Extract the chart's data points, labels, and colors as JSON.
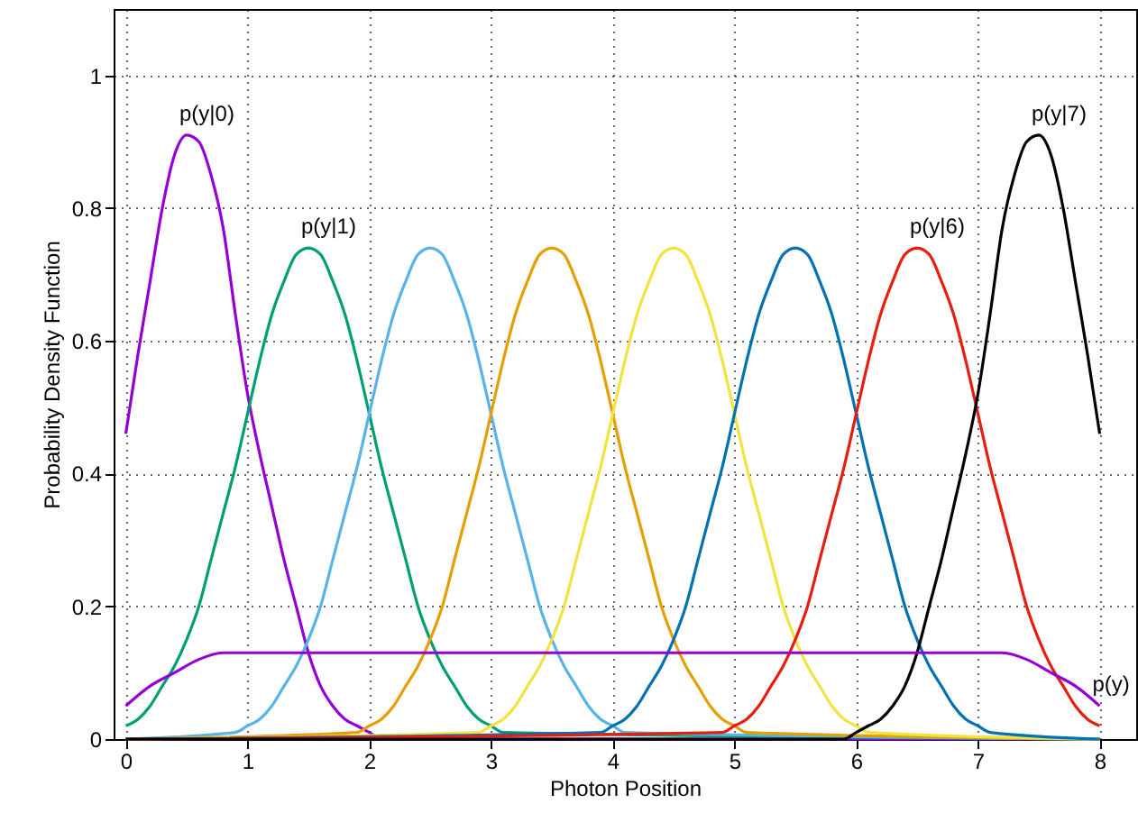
{
  "chart_data": {
    "type": "line",
    "xlabel": "Photon Position",
    "ylabel": "Probability Density Function",
    "xlim": [
      -0.1,
      8.3
    ],
    "ylim": [
      0,
      1.1
    ],
    "xticks": [
      0,
      1,
      2,
      3,
      4,
      5,
      6,
      7,
      8
    ],
    "yticks": [
      0,
      0.2,
      0.4,
      0.6,
      0.8,
      1
    ],
    "grid": true,
    "marker": "none",
    "line_style": "solid",
    "annotations": [
      {
        "text": "p(y|0)",
        "x": 0.5,
        "y": 0.91
      },
      {
        "text": "p(y|1)",
        "x": 1.5,
        "y": 0.74
      },
      {
        "text": "p(y|6)",
        "x": 6.5,
        "y": 0.74
      },
      {
        "text": "p(y|7)",
        "x": 7.5,
        "y": 0.91
      },
      {
        "text": "p(y)",
        "x": 8,
        "y": 0.05
      }
    ],
    "series": [
      {
        "color": "#9400d3",
        "x": [
          0,
          0.1,
          0.2,
          0.3,
          0.4,
          0.5,
          0.6,
          0.7,
          0.8,
          0.9,
          1,
          1.1,
          1.2,
          1.3,
          1.4,
          1.5,
          1.6,
          1.7,
          1.8,
          1.9,
          2,
          2.1,
          2.2,
          8
        ],
        "values": [
          0.46,
          0.58,
          0.69,
          0.8,
          0.88,
          0.91,
          0.9,
          0.85,
          0.77,
          0.64,
          0.52,
          0.43,
          0.35,
          0.27,
          0.2,
          0.13,
          0.08,
          0.05,
          0.03,
          0.02,
          0.01,
          0,
          0,
          0
        ]
      },
      {
        "color": "#009e73",
        "x": [
          0,
          0.1,
          0.2,
          0.3,
          0.4,
          0.5,
          0.6,
          0.7,
          0.8,
          0.9,
          1,
          1.1,
          1.2,
          1.3,
          1.4,
          1.5,
          1.6,
          1.7,
          1.8,
          1.9,
          2,
          2.1,
          2.2,
          2.3,
          2.4,
          2.5,
          2.6,
          2.7,
          2.8,
          2.9,
          3,
          3.1,
          8
        ],
        "values": [
          0.02,
          0.03,
          0.05,
          0.08,
          0.11,
          0.15,
          0.2,
          0.27,
          0.34,
          0.41,
          0.49,
          0.57,
          0.64,
          0.69,
          0.73,
          0.74,
          0.73,
          0.69,
          0.64,
          0.57,
          0.49,
          0.41,
          0.34,
          0.27,
          0.2,
          0.15,
          0.11,
          0.08,
          0.05,
          0.03,
          0.02,
          0.01,
          0
        ]
      },
      {
        "color": "#56b4e9",
        "x": [
          0,
          0.9,
          1,
          1.1,
          1.2,
          1.3,
          1.4,
          1.5,
          1.6,
          1.7,
          1.8,
          1.9,
          2,
          2.1,
          2.2,
          2.3,
          2.4,
          2.5,
          2.6,
          2.7,
          2.8,
          2.9,
          3,
          3.1,
          3.2,
          3.3,
          3.4,
          3.5,
          3.6,
          3.7,
          3.8,
          3.9,
          4,
          4.1,
          8
        ],
        "values": [
          0,
          0.01,
          0.02,
          0.03,
          0.05,
          0.08,
          0.11,
          0.15,
          0.2,
          0.27,
          0.34,
          0.41,
          0.49,
          0.57,
          0.64,
          0.69,
          0.73,
          0.74,
          0.73,
          0.69,
          0.64,
          0.57,
          0.49,
          0.41,
          0.34,
          0.27,
          0.2,
          0.15,
          0.11,
          0.08,
          0.05,
          0.03,
          0.02,
          0.01,
          0
        ]
      },
      {
        "color": "#e69f00",
        "x": [
          0,
          1.9,
          2,
          2.1,
          2.2,
          2.3,
          2.4,
          2.5,
          2.6,
          2.7,
          2.8,
          2.9,
          3,
          3.1,
          3.2,
          3.3,
          3.4,
          3.5,
          3.6,
          3.7,
          3.8,
          3.9,
          4,
          4.1,
          4.2,
          4.3,
          4.4,
          4.5,
          4.6,
          4.7,
          4.8,
          4.9,
          5,
          5.1,
          8
        ],
        "values": [
          0,
          0.01,
          0.02,
          0.03,
          0.05,
          0.08,
          0.11,
          0.15,
          0.2,
          0.27,
          0.34,
          0.41,
          0.49,
          0.57,
          0.64,
          0.69,
          0.73,
          0.74,
          0.73,
          0.69,
          0.64,
          0.57,
          0.49,
          0.41,
          0.34,
          0.27,
          0.2,
          0.15,
          0.11,
          0.08,
          0.05,
          0.03,
          0.02,
          0.01,
          0
        ]
      },
      {
        "color": "#f0e442",
        "x": [
          0,
          2.9,
          3,
          3.1,
          3.2,
          3.3,
          3.4,
          3.5,
          3.6,
          3.7,
          3.8,
          3.9,
          4,
          4.1,
          4.2,
          4.3,
          4.4,
          4.5,
          4.6,
          4.7,
          4.8,
          4.9,
          5,
          5.1,
          5.2,
          5.3,
          5.4,
          5.5,
          5.6,
          5.7,
          5.8,
          5.9,
          6,
          6.1,
          8
        ],
        "values": [
          0,
          0.01,
          0.02,
          0.03,
          0.05,
          0.08,
          0.11,
          0.15,
          0.2,
          0.27,
          0.34,
          0.41,
          0.49,
          0.57,
          0.64,
          0.69,
          0.73,
          0.74,
          0.73,
          0.69,
          0.64,
          0.57,
          0.49,
          0.41,
          0.34,
          0.27,
          0.2,
          0.15,
          0.11,
          0.08,
          0.05,
          0.03,
          0.02,
          0.01,
          0
        ]
      },
      {
        "color": "#0072b2",
        "x": [
          0,
          3.9,
          4,
          4.1,
          4.2,
          4.3,
          4.4,
          4.5,
          4.6,
          4.7,
          4.8,
          4.9,
          5,
          5.1,
          5.2,
          5.3,
          5.4,
          5.5,
          5.6,
          5.7,
          5.8,
          5.9,
          6,
          6.1,
          6.2,
          6.3,
          6.4,
          6.5,
          6.6,
          6.7,
          6.8,
          6.9,
          7,
          7.1,
          8
        ],
        "values": [
          0,
          0.01,
          0.02,
          0.03,
          0.05,
          0.08,
          0.11,
          0.15,
          0.2,
          0.27,
          0.34,
          0.41,
          0.49,
          0.57,
          0.64,
          0.69,
          0.73,
          0.74,
          0.73,
          0.69,
          0.64,
          0.57,
          0.49,
          0.41,
          0.34,
          0.27,
          0.2,
          0.15,
          0.11,
          0.08,
          0.05,
          0.03,
          0.02,
          0.01,
          0
        ]
      },
      {
        "color": "#e51e10",
        "x": [
          0,
          4.9,
          5,
          5.1,
          5.2,
          5.3,
          5.4,
          5.5,
          5.6,
          5.7,
          5.8,
          5.9,
          6,
          6.1,
          6.2,
          6.3,
          6.4,
          6.5,
          6.6,
          6.7,
          6.8,
          6.9,
          7,
          7.1,
          7.2,
          7.3,
          7.4,
          7.5,
          7.6,
          7.7,
          7.8,
          7.9,
          8
        ],
        "values": [
          0,
          0.01,
          0.02,
          0.03,
          0.05,
          0.08,
          0.11,
          0.15,
          0.2,
          0.27,
          0.34,
          0.41,
          0.49,
          0.57,
          0.64,
          0.69,
          0.73,
          0.74,
          0.73,
          0.69,
          0.64,
          0.57,
          0.49,
          0.41,
          0.34,
          0.27,
          0.2,
          0.15,
          0.11,
          0.08,
          0.05,
          0.03,
          0.02
        ]
      },
      {
        "color": "#000000",
        "x": [
          0,
          5.8,
          5.9,
          6,
          6.1,
          6.2,
          6.3,
          6.4,
          6.5,
          6.6,
          6.7,
          6.8,
          6.9,
          7,
          7.1,
          7.2,
          7.3,
          7.4,
          7.5,
          7.6,
          7.7,
          7.8,
          7.9,
          8
        ],
        "values": [
          0,
          0,
          0,
          0.01,
          0.02,
          0.03,
          0.05,
          0.08,
          0.13,
          0.2,
          0.27,
          0.35,
          0.43,
          0.52,
          0.64,
          0.77,
          0.85,
          0.9,
          0.91,
          0.88,
          0.8,
          0.69,
          0.58,
          0.46
        ]
      },
      {
        "color": "#9400d3",
        "x": [
          0,
          0.2,
          0.4,
          0.6,
          0.8,
          1,
          2,
          3,
          4,
          5,
          6,
          7,
          7.2,
          7.4,
          7.6,
          7.8,
          8
        ],
        "values": [
          0.05,
          0.08,
          0.1,
          0.12,
          0.13,
          0.13,
          0.13,
          0.13,
          0.13,
          0.13,
          0.13,
          0.13,
          0.13,
          0.12,
          0.1,
          0.08,
          0.05
        ]
      }
    ]
  }
}
